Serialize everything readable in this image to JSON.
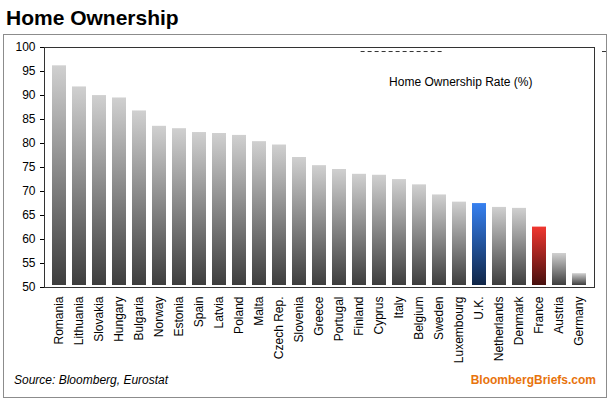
{
  "chart_data": {
    "type": "bar",
    "title": "Home Ownership",
    "annotations": [
      "Home Ownership Rate (%)",
      "Source: Bloomberg, Eurostat",
      "BloombergBriefs.com"
    ],
    "categories": [
      "Romania",
      "Lithuania",
      "Slovakia",
      "Hungary",
      "Bulgaria",
      "Norway",
      "Estonia",
      "Spain",
      "Latvia",
      "Poland",
      "Malta",
      "Czech Rep.",
      "Slovenia",
      "Greece",
      "Portugal",
      "Finland",
      "Cyprus",
      "Italy",
      "Belgium",
      "Sweden",
      "Luxembourg",
      "U.K.",
      "Netherlands",
      "Denmark",
      "France",
      "Austria",
      "Germany"
    ],
    "values": [
      96.6,
      92.2,
      90.4,
      89.9,
      87.2,
      84.0,
      83.5,
      82.7,
      82.5,
      82.1,
      80.8,
      80.1,
      77.5,
      75.8,
      75.0,
      74.0,
      73.8,
      72.9,
      71.8,
      69.7,
      68.2,
      67.9,
      67.1,
      66.9,
      63.0,
      57.5,
      53.3
    ],
    "colors": [
      "#b4b4b4",
      "#b4b4b4",
      "#b4b4b4",
      "#b4b4b4",
      "#b4b4b4",
      "#b4b4b4",
      "#b4b4b4",
      "#b4b4b4",
      "#b4b4b4",
      "#b4b4b4",
      "#b4b4b4",
      "#b4b4b4",
      "#b4b4b4",
      "#b4b4b4",
      "#b4b4b4",
      "#b4b4b4",
      "#b4b4b4",
      "#b4b4b4",
      "#b4b4b4",
      "#b4b4b4",
      "#b4b4b4",
      "#2f6fd0",
      "#b4b4b4",
      "#b4b4b4",
      "#d0302a",
      "#b4b4b4",
      "#b4b4b4"
    ],
    "ylim": [
      50,
      100
    ],
    "yticks": [
      50,
      55,
      60,
      65,
      70,
      75,
      80,
      85,
      90,
      95,
      100
    ],
    "grid": false
  }
}
